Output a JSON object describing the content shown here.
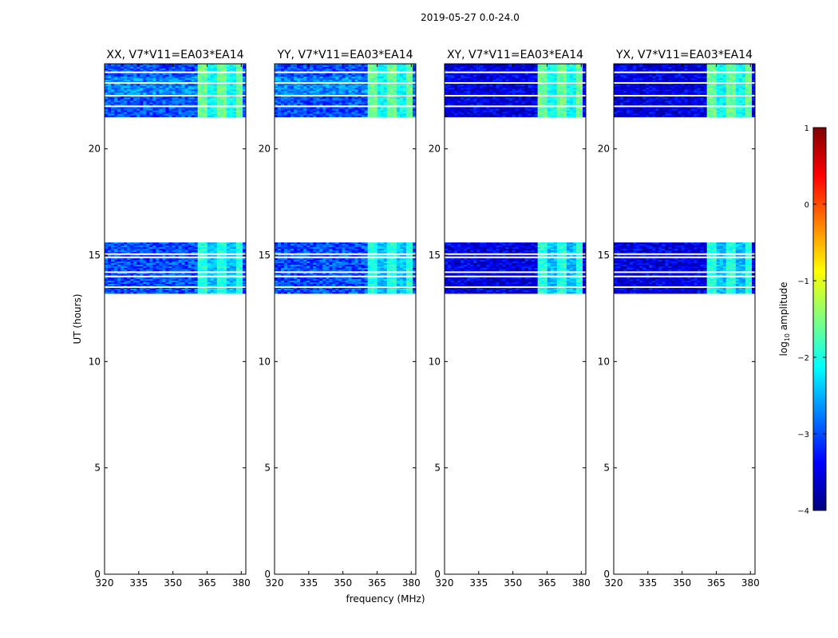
{
  "figure": {
    "suptitle": "2019-05-27 0.0-24.0"
  },
  "chart_data": {
    "type": "heatmap",
    "title": "2019-05-27 0.0-24.0",
    "xlabel": "frequency (MHz)",
    "ylabel": "UT (hours)",
    "xlim": [
      320,
      382
    ],
    "ylim": [
      0,
      24
    ],
    "xticks": [
      320,
      335,
      350,
      365,
      380
    ],
    "yticks": [
      0,
      5,
      10,
      15,
      20
    ],
    "panels": [
      {
        "title": "XX, V7*V11=EA03*EA14"
      },
      {
        "title": "YY, V7*V11=EA03*EA14"
      },
      {
        "title": "XY, V7*V11=EA03*EA14"
      },
      {
        "title": "YX, V7*V11=EA03*EA14"
      }
    ],
    "data_time_ranges_hours": [
      [
        13.2,
        15.6
      ],
      [
        21.5,
        24.0
      ]
    ],
    "flagged_time_lines_hours": [
      13.5,
      14.0,
      14.2,
      14.9,
      15.05,
      22.0,
      22.5,
      23.1,
      23.6
    ],
    "bright_band_freq_mhz": [
      361,
      380
    ],
    "colorbar": {
      "label": "log",
      "label_sub": "10",
      "label_suffix": " amplitude",
      "range": [
        -4,
        1
      ],
      "ticks": [
        1,
        0,
        -1,
        -2,
        -3,
        -4
      ],
      "tick_labels": [
        "1",
        "0",
        "−1",
        "−2",
        "−3",
        "−4"
      ],
      "colormap": [
        "#00007f",
        "#0000ff",
        "#007fff",
        "#00ffff",
        "#7fff7f",
        "#ffff00",
        "#ff7f00",
        "#ff0000",
        "#7f0000"
      ]
    }
  }
}
